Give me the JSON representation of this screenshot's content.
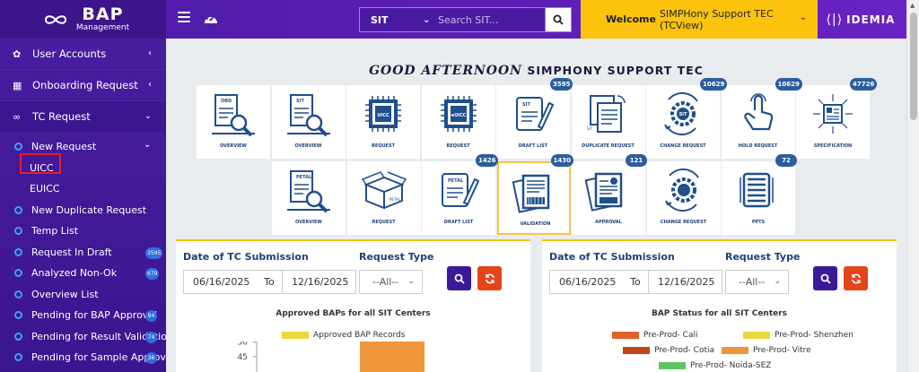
{
  "app": {
    "logo_title": "BAP",
    "logo_sub": "Management",
    "brand": "IDEMIA"
  },
  "header": {
    "env_selected": "SIT",
    "search_placeholder": "Search SIT...",
    "welcome_bold": "Welcome",
    "welcome_user": "SIMPHony Support TEC (TCView)"
  },
  "sidebar": {
    "user_accounts": "User Accounts",
    "onboarding": "Onboarding Request",
    "tc_request": "TC Request",
    "items": [
      {
        "label": "New Request",
        "type": "ring",
        "chev": true
      },
      {
        "label": "UICC",
        "type": "sub"
      },
      {
        "label": "EUICC",
        "type": "sub"
      },
      {
        "label": "New Duplicate Request",
        "type": "ring"
      },
      {
        "label": "Temp List",
        "type": "ring"
      },
      {
        "label": "Request In Draft",
        "type": "ring",
        "badge": "3595"
      },
      {
        "label": "Analyzed Non-Ok",
        "type": "ring",
        "badge": "679"
      },
      {
        "label": "Overview List",
        "type": "ring"
      },
      {
        "label": "Pending for BAP Approval",
        "type": "ring",
        "badge": "94"
      },
      {
        "label": "Pending for Result Validation",
        "type": "ring",
        "badge": "74"
      },
      {
        "label": "Pending for Sample Approval",
        "type": "ring",
        "badge": "36"
      }
    ]
  },
  "greeting": {
    "part1": "GOOD AFTERNOON",
    "part2": "SIMPHONY SUPPORT TEC"
  },
  "tiles_row1": [
    {
      "label": "OVERVIEW",
      "icon": "obd-overview-icon",
      "tag": "OBD"
    },
    {
      "label": "OVERVIEW",
      "icon": "sit-overview-icon",
      "tag": "SIT"
    },
    {
      "label": "REQUEST",
      "icon": "uicc-request-icon",
      "tag": "UICC"
    },
    {
      "label": "REQUEST",
      "icon": "euicc-request-icon",
      "tag": "eUICC"
    },
    {
      "label": "DRAFT LIST",
      "icon": "sit-draft-list-icon",
      "tag": "SIT",
      "badge": "3595"
    },
    {
      "label": "DUPLICATE REQUEST",
      "icon": "duplicate-request-icon",
      "tag": "SIT"
    },
    {
      "label": "CHANGE REQUEST",
      "icon": "change-request-icon",
      "tag": "SIT",
      "badge": "10629"
    },
    {
      "label": "HOLD REQUEST",
      "icon": "hold-request-icon",
      "badge": "10629"
    },
    {
      "label": "SPECIFICATION",
      "icon": "specification-icon",
      "badge": "47726"
    }
  ],
  "tiles_row2": [
    {
      "label": "OVERVIEW",
      "icon": "petal-overview-icon",
      "tag": "PETAL"
    },
    {
      "label": "REQUEST",
      "icon": "petal-request-icon",
      "tag": "PETAL"
    },
    {
      "label": "DRAFT LIST",
      "icon": "petal-draft-list-icon",
      "tag": "PETAL",
      "badge": "1426"
    },
    {
      "label": "VALIDATION",
      "icon": "validation-icon",
      "badge": "1430"
    },
    {
      "label": "APPROVAL",
      "icon": "approval-icon",
      "badge": "121"
    },
    {
      "label": "CHANGE REQUEST",
      "icon": "petal-change-request-icon"
    },
    {
      "label": "PPTS",
      "icon": "ppts-icon",
      "badge": "72"
    }
  ],
  "panel_left": {
    "date_label": "Date of TC Submission",
    "type_label": "Request Type",
    "from": "06/16/2025",
    "to_word": "To",
    "to": "12/16/2025",
    "type_value": "--All--",
    "chart_title": "Approved BAPs for all SIT Centers",
    "legend": [
      {
        "label": "Approved BAP Records",
        "color": "#ead93a"
      }
    ]
  },
  "panel_right": {
    "date_label": "Date of TC Submission",
    "type_label": "Request Type",
    "from": "06/16/2025",
    "to_word": "To",
    "to": "12/16/2025",
    "type_value": "--All--",
    "chart_title": "BAP Status for all SIT Centers",
    "legend": [
      {
        "label": "Pre-Prod- Cali",
        "color": "#e0622b"
      },
      {
        "label": "Pre-Prod- Shenzhen",
        "color": "#ead93a"
      },
      {
        "label": "Pre-Prod- Cotia",
        "color": "#c0461a"
      },
      {
        "label": "Pre-Prod- Vitre",
        "color": "#f0963a"
      },
      {
        "label": "Pre-Prod- Noida-SEZ",
        "color": "#5fc45f"
      }
    ]
  },
  "chart_data": {
    "type": "bar",
    "title": "Approved BAPs for all SIT Centers",
    "series": [
      {
        "name": "Approved BAP Records",
        "values": [
          50
        ]
      }
    ],
    "y_ticks": [
      50,
      45
    ],
    "ylim": [
      0,
      50
    ]
  }
}
